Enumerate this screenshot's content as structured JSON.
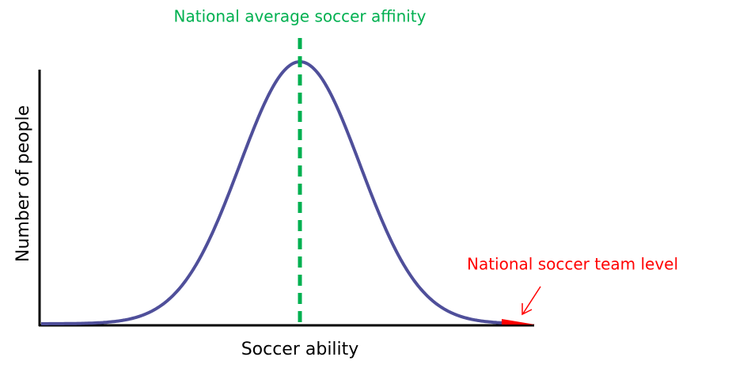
{
  "annotations": {
    "mean_label": "National average soccer affinity",
    "tail_label": "National soccer team level"
  },
  "axes": {
    "x_label": "Soccer ability",
    "y_label": "Number of people"
  }
}
